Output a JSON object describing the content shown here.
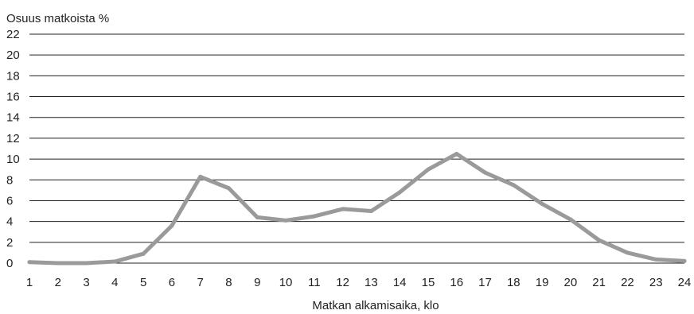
{
  "chart_data": {
    "type": "line",
    "title": "",
    "ylabel": "Osuus matkoista %",
    "xlabel": "Matkan alkamisaika, klo",
    "categories": [
      "1",
      "2",
      "3",
      "4",
      "5",
      "6",
      "7",
      "8",
      "9",
      "10",
      "11",
      "12",
      "13",
      "14",
      "15",
      "16",
      "17",
      "18",
      "19",
      "20",
      "21",
      "22",
      "23",
      "24"
    ],
    "series": [
      {
        "values": [
          0.1,
          0.0,
          0.0,
          0.15,
          0.9,
          3.6,
          8.3,
          7.2,
          4.4,
          4.1,
          4.5,
          5.2,
          5.0,
          6.8,
          9.0,
          10.5,
          8.7,
          7.5,
          5.7,
          4.2,
          2.2,
          1.0,
          0.35,
          0.2
        ],
        "color": "#9a9a9a"
      }
    ],
    "yticks": [
      "0",
      "2",
      "4",
      "6",
      "8",
      "10",
      "12",
      "14",
      "16",
      "18",
      "20",
      "22"
    ],
    "ylim": [
      0,
      22
    ],
    "grid": "horizontal",
    "legend": "none"
  }
}
